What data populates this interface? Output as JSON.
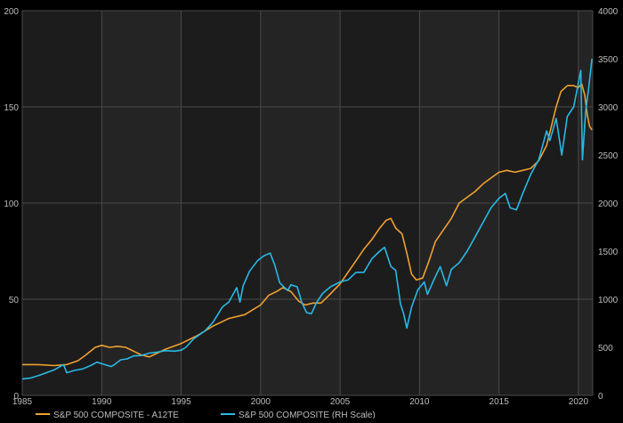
{
  "chart_data": {
    "type": "line",
    "title": "",
    "xlabel": "",
    "ylabel": "",
    "x_ticks": [
      "1985",
      "1990",
      "1995",
      "2000",
      "2005",
      "2010",
      "2015",
      "2020"
    ],
    "xlim": [
      1985,
      2020.9
    ],
    "y_left": {
      "lim": [
        0,
        200
      ],
      "ticks": [
        "0",
        "50",
        "100",
        "150",
        "200"
      ]
    },
    "y_right": {
      "lim": [
        0,
        4000
      ],
      "ticks": [
        "0",
        "500",
        "1000",
        "1500",
        "2000",
        "2500",
        "3000",
        "3500",
        "4000"
      ]
    },
    "grid": true,
    "legend_position": "bottom-left",
    "series": [
      {
        "name": "S&P 500 COMPOSITE - A12TE",
        "axis": "left",
        "color": "#f0a030",
        "points": [
          [
            1985.0,
            16
          ],
          [
            1986.0,
            16
          ],
          [
            1987.0,
            15.5
          ],
          [
            1987.8,
            16
          ],
          [
            1988.5,
            18
          ],
          [
            1989.0,
            21
          ],
          [
            1989.6,
            25
          ],
          [
            1990.0,
            26
          ],
          [
            1990.5,
            25
          ],
          [
            1991.0,
            25.5
          ],
          [
            1991.5,
            25
          ],
          [
            1992.0,
            23
          ],
          [
            1992.5,
            21
          ],
          [
            1993.0,
            20
          ],
          [
            1993.5,
            22
          ],
          [
            1994.0,
            24
          ],
          [
            1995.0,
            27
          ],
          [
            1996.0,
            31
          ],
          [
            1997.0,
            36
          ],
          [
            1998.0,
            40
          ],
          [
            1999.0,
            42
          ],
          [
            1999.6,
            45
          ],
          [
            2000.0,
            47
          ],
          [
            2000.5,
            52
          ],
          [
            2001.0,
            54
          ],
          [
            2001.4,
            56
          ],
          [
            2001.9,
            54
          ],
          [
            2002.4,
            49
          ],
          [
            2002.8,
            47
          ],
          [
            2003.3,
            48
          ],
          [
            2003.8,
            48
          ],
          [
            2004.3,
            52
          ],
          [
            2005.0,
            58
          ],
          [
            2005.5,
            64
          ],
          [
            2006.0,
            70
          ],
          [
            2006.5,
            76
          ],
          [
            2007.0,
            81
          ],
          [
            2007.5,
            87
          ],
          [
            2007.9,
            91
          ],
          [
            2008.2,
            92
          ],
          [
            2008.5,
            87
          ],
          [
            2008.9,
            84
          ],
          [
            2009.2,
            74
          ],
          [
            2009.5,
            63
          ],
          [
            2009.8,
            60
          ],
          [
            2010.2,
            61
          ],
          [
            2010.6,
            70
          ],
          [
            2011.0,
            80
          ],
          [
            2011.5,
            86
          ],
          [
            2012.0,
            92
          ],
          [
            2012.5,
            100
          ],
          [
            2013.0,
            103
          ],
          [
            2013.5,
            106
          ],
          [
            2014.0,
            110
          ],
          [
            2014.5,
            113
          ],
          [
            2015.0,
            116
          ],
          [
            2015.5,
            117
          ],
          [
            2016.0,
            116
          ],
          [
            2016.5,
            117
          ],
          [
            2017.0,
            118
          ],
          [
            2017.5,
            122
          ],
          [
            2018.0,
            130
          ],
          [
            2018.3,
            140
          ],
          [
            2018.6,
            150
          ],
          [
            2018.9,
            158
          ],
          [
            2019.3,
            161
          ],
          [
            2019.7,
            161
          ],
          [
            2020.0,
            160
          ],
          [
            2020.2,
            162
          ],
          [
            2020.4,
            156
          ],
          [
            2020.55,
            146
          ],
          [
            2020.7,
            140
          ],
          [
            2020.85,
            138
          ]
        ]
      },
      {
        "name": "S&P 500 COMPOSITE (RH Scale)",
        "axis": "right",
        "color": "#29b8e5",
        "points": [
          [
            1985.0,
            170
          ],
          [
            1985.5,
            180
          ],
          [
            1986.0,
            205
          ],
          [
            1986.5,
            235
          ],
          [
            1987.0,
            265
          ],
          [
            1987.6,
            320
          ],
          [
            1987.8,
            235
          ],
          [
            1988.3,
            260
          ],
          [
            1988.8,
            275
          ],
          [
            1989.3,
            310
          ],
          [
            1989.7,
            345
          ],
          [
            1990.0,
            330
          ],
          [
            1990.6,
            300
          ],
          [
            1990.8,
            320
          ],
          [
            1991.2,
            370
          ],
          [
            1991.6,
            380
          ],
          [
            1992.0,
            410
          ],
          [
            1992.5,
            415
          ],
          [
            1993.0,
            440
          ],
          [
            1993.5,
            450
          ],
          [
            1994.0,
            465
          ],
          [
            1994.6,
            460
          ],
          [
            1995.0,
            470
          ],
          [
            1995.3,
            500
          ],
          [
            1995.8,
            590
          ],
          [
            1996.5,
            670
          ],
          [
            1997.0,
            760
          ],
          [
            1997.6,
            920
          ],
          [
            1998.0,
            970
          ],
          [
            1998.5,
            1120
          ],
          [
            1998.7,
            970
          ],
          [
            1998.9,
            1140
          ],
          [
            1999.3,
            1290
          ],
          [
            1999.8,
            1400
          ],
          [
            2000.2,
            1450
          ],
          [
            2000.6,
            1480
          ],
          [
            2000.9,
            1350
          ],
          [
            2001.2,
            1170
          ],
          [
            2001.7,
            1090
          ],
          [
            2001.9,
            1150
          ],
          [
            2002.3,
            1130
          ],
          [
            2002.6,
            960
          ],
          [
            2002.9,
            860
          ],
          [
            2003.2,
            850
          ],
          [
            2003.5,
            960
          ],
          [
            2003.9,
            1060
          ],
          [
            2004.4,
            1130
          ],
          [
            2005.0,
            1180
          ],
          [
            2005.5,
            1200
          ],
          [
            2006.0,
            1280
          ],
          [
            2006.5,
            1280
          ],
          [
            2007.0,
            1420
          ],
          [
            2007.5,
            1500
          ],
          [
            2007.8,
            1540
          ],
          [
            2008.2,
            1340
          ],
          [
            2008.5,
            1300
          ],
          [
            2008.8,
            950
          ],
          [
            2009.0,
            850
          ],
          [
            2009.2,
            700
          ],
          [
            2009.5,
            920
          ],
          [
            2009.9,
            1100
          ],
          [
            2010.3,
            1180
          ],
          [
            2010.5,
            1050
          ],
          [
            2010.9,
            1200
          ],
          [
            2011.3,
            1340
          ],
          [
            2011.7,
            1140
          ],
          [
            2012.0,
            1310
          ],
          [
            2012.5,
            1380
          ],
          [
            2013.0,
            1500
          ],
          [
            2013.5,
            1650
          ],
          [
            2014.0,
            1800
          ],
          [
            2014.5,
            1950
          ],
          [
            2015.0,
            2050
          ],
          [
            2015.4,
            2100
          ],
          [
            2015.7,
            1950
          ],
          [
            2016.1,
            1930
          ],
          [
            2016.5,
            2100
          ],
          [
            2017.0,
            2300
          ],
          [
            2017.5,
            2450
          ],
          [
            2018.0,
            2750
          ],
          [
            2018.2,
            2650
          ],
          [
            2018.6,
            2880
          ],
          [
            2018.95,
            2500
          ],
          [
            2019.3,
            2900
          ],
          [
            2019.7,
            3000
          ],
          [
            2020.0,
            3250
          ],
          [
            2020.15,
            3380
          ],
          [
            2020.25,
            2450
          ],
          [
            2020.45,
            2950
          ],
          [
            2020.65,
            3200
          ],
          [
            2020.85,
            3500
          ]
        ]
      }
    ]
  },
  "legend": {
    "item1": "S&P 500 COMPOSITE - A12TE",
    "item2": "S&P 500 COMPOSITE (RH Scale)"
  },
  "colors": {
    "background": "#000000",
    "plot_background": "#1c1c1c",
    "band_background": "#242424",
    "grid": "#4a4a4a",
    "tick_text": "#bdbdbd"
  }
}
